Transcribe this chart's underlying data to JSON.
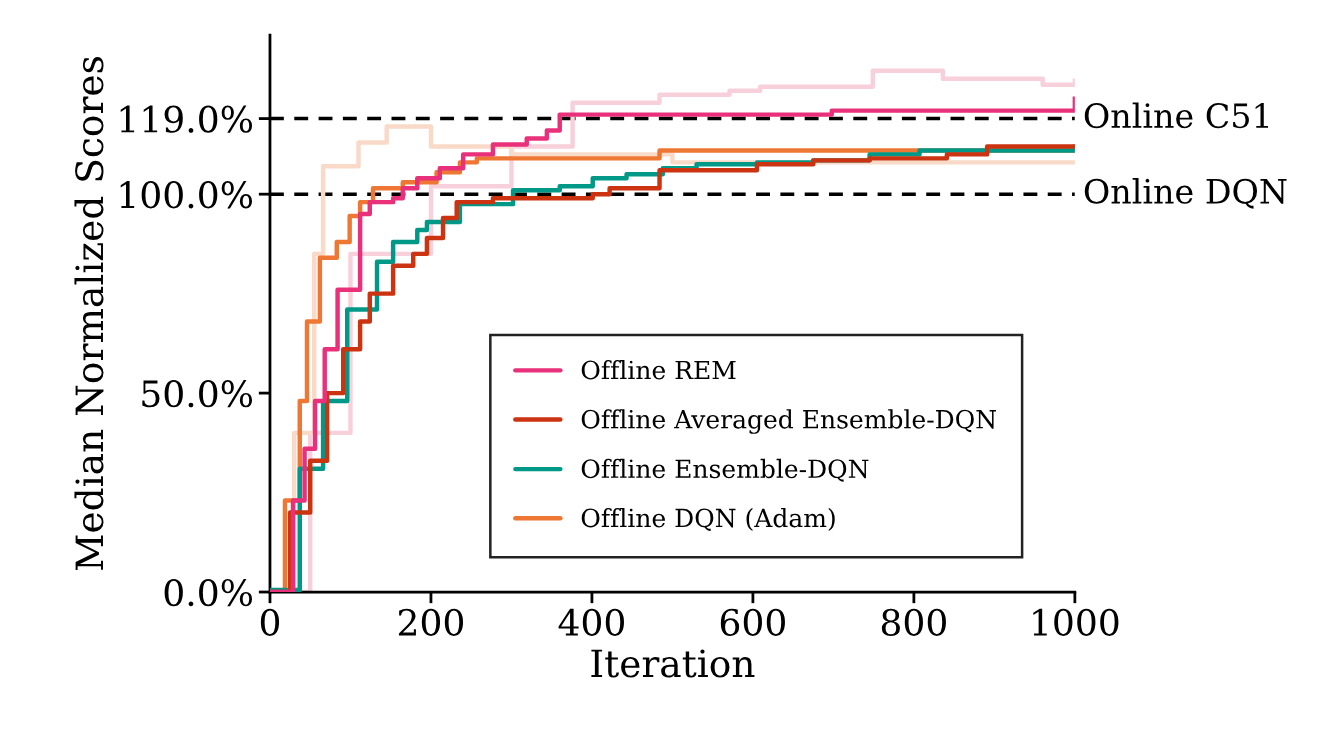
{
  "chart_data": {
    "type": "step",
    "xlabel": "Iteration",
    "ylabel": "Median Normalized Scores",
    "xlim": [
      0,
      1000
    ],
    "ylim": [
      0,
      140
    ],
    "xticks": [
      0,
      200,
      400,
      600,
      800,
      1000
    ],
    "yticks": [
      {
        "value": 0,
        "label": "0.0%"
      },
      {
        "value": 50,
        "label": "50.0%"
      },
      {
        "value": 100,
        "label": "100.0%"
      },
      {
        "value": 119,
        "label": "119.0%"
      }
    ],
    "grid": false,
    "legend": "bottom right",
    "line_style": "solid",
    "marker": "none",
    "ref_lines": [
      {
        "axis": "y",
        "value": 119,
        "label": "Online C51",
        "color": "#000000",
        "line_style": "dashed"
      },
      {
        "axis": "y",
        "value": 100,
        "label": "Online DQN",
        "color": "#000000",
        "line_style": "dashed"
      }
    ],
    "series": [
      {
        "color": "#f8d0dc",
        "x": [
          0,
          50,
          100,
          200,
          300,
          376,
          463,
          484,
          571,
          609,
          749,
          836,
          960,
          1000
        ],
        "values": [
          0,
          40,
          85,
          102,
          112,
          123,
          123,
          125,
          126,
          127,
          131,
          129,
          127.5,
          128.5
        ]
      },
      {
        "color": "#f9d9c8",
        "x": [
          0,
          30,
          55,
          66,
          110,
          145,
          200,
          300,
          500,
          1000
        ],
        "values": [
          0,
          40,
          85,
          107,
          113,
          117,
          112,
          110,
          108,
          108
        ]
      },
      {
        "name": "Offline REM",
        "color": "#e8317a",
        "x": [
          0,
          28.6,
          43,
          56,
          68,
          84,
          112,
          124,
          153,
          165,
          183,
          211,
          240,
          277,
          319,
          344,
          360,
          698,
          1000
        ],
        "values": [
          0,
          23,
          36,
          48,
          61,
          76,
          95,
          98,
          99,
          101.5,
          104,
          106.5,
          110,
          112.5,
          114,
          116,
          120,
          121,
          124
        ]
      },
      {
        "name": "Offline Averaged Ensemble-DQN",
        "color": "#cc3311",
        "x": [
          0,
          25,
          50,
          71,
          91,
          112,
          124,
          153,
          178,
          195,
          215,
          232,
          277,
          401,
          422,
          484,
          605,
          675,
          745,
          841,
          891,
          1000
        ],
        "values": [
          0,
          20,
          33,
          50,
          61,
          68,
          75,
          82,
          85,
          89,
          94,
          98,
          99,
          100,
          101.5,
          106,
          107.5,
          108.5,
          109,
          110,
          112,
          112
        ]
      },
      {
        "name": "Offline Ensemble-DQN",
        "color": "#009988",
        "x": [
          0,
          2,
          37,
          66,
          96,
          112,
          133,
          153,
          183,
          195,
          236,
          302,
          360,
          401,
          443,
          488,
          530,
          605,
          675,
          745,
          807,
          1000
        ],
        "values": [
          0,
          0.5,
          31,
          48,
          71,
          71,
          83,
          88,
          91,
          93,
          97.5,
          101,
          102,
          104,
          105,
          106.5,
          107.5,
          108,
          108.5,
          110,
          111,
          111.5
        ]
      },
      {
        "name": "Offline DQN (Adam)",
        "color": "#ee7733",
        "x": [
          0,
          18.6,
          37,
          46,
          62,
          83,
          99,
          112,
          128,
          165,
          207,
          236,
          257,
          484,
          1000
        ],
        "values": [
          0,
          23,
          48,
          68,
          84,
          88,
          94.5,
          98,
          101.5,
          103,
          105.5,
          108,
          109,
          111,
          112
        ]
      }
    ]
  }
}
